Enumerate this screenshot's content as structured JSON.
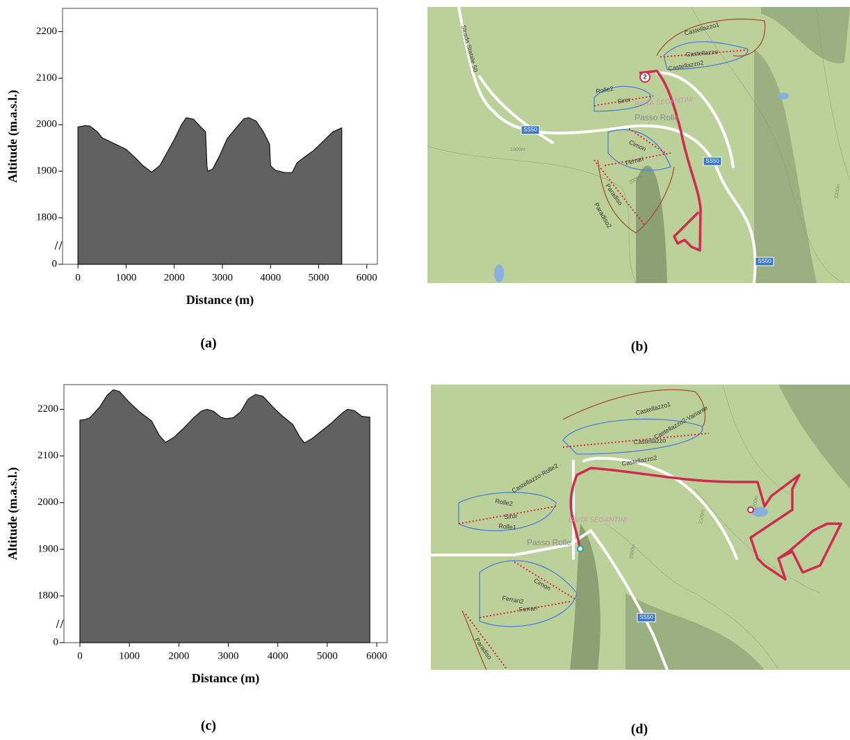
{
  "chart_data": [
    {
      "type": "area",
      "xlabel": "Distance (m)",
      "ylabel": "Altitude (m.a.s.l.)",
      "x": [
        0,
        150,
        250,
        400,
        500,
        700,
        1000,
        1200,
        1350,
        1530,
        1700,
        1850,
        2000,
        2150,
        2250,
        2400,
        2550,
        2650,
        2680,
        2700,
        2800,
        2950,
        3100,
        3300,
        3450,
        3550,
        3700,
        3850,
        3980,
        4000,
        4100,
        4300,
        4450,
        4550,
        4700,
        4900,
        5100,
        5300,
        5480
      ],
      "values": [
        1995,
        1998,
        1997,
        1985,
        1972,
        1962,
        1947,
        1928,
        1912,
        1898,
        1912,
        1940,
        1968,
        2000,
        2015,
        2012,
        1995,
        1985,
        1910,
        1900,
        1905,
        1935,
        1970,
        1995,
        2013,
        2015,
        2008,
        1985,
        1958,
        1912,
        1902,
        1897,
        1897,
        1918,
        1930,
        1945,
        1965,
        1985,
        1993
      ],
      "color": "#616161",
      "xlim": [
        -320,
        6220
      ],
      "ylim": [
        1700,
        2250
      ],
      "axis_break": true,
      "xticks": [
        0,
        1000,
        2000,
        3000,
        4000,
        5000,
        6000
      ],
      "yticks": [
        0,
        1800,
        1900,
        2000,
        2100,
        2200
      ]
    },
    {
      "type": "area",
      "xlabel": "Distance (m)",
      "ylabel": "Altitude (m.a.s.l.)",
      "x": [
        0,
        100,
        200,
        400,
        550,
        675,
        800,
        1000,
        1200,
        1450,
        1600,
        1730,
        1900,
        2100,
        2300,
        2450,
        2570,
        2700,
        2850,
        2950,
        3100,
        3250,
        3400,
        3550,
        3700,
        3900,
        4100,
        4300,
        4450,
        4540,
        4700,
        4900,
        5100,
        5300,
        5410,
        5550,
        5700,
        5860
      ],
      "values": [
        2177,
        2178,
        2182,
        2205,
        2230,
        2242,
        2238,
        2215,
        2195,
        2175,
        2145,
        2129,
        2140,
        2160,
        2182,
        2196,
        2200,
        2196,
        2183,
        2180,
        2182,
        2195,
        2222,
        2232,
        2228,
        2205,
        2185,
        2168,
        2140,
        2128,
        2138,
        2155,
        2172,
        2192,
        2200,
        2197,
        2185,
        2183
      ],
      "color": "#616161",
      "xlim": [
        -323,
        6210
      ],
      "ylim": [
        1700,
        2253
      ],
      "axis_break": true,
      "xticks": [
        0,
        1000,
        2000,
        3000,
        4000,
        5000,
        6000
      ],
      "yticks": [
        0,
        1800,
        1900,
        2000,
        2100,
        2200
      ]
    }
  ],
  "panels": [
    "(a)",
    "(b)",
    "(c)",
    "(d)"
  ],
  "maps": [
    {
      "labels": [
        "Strada Statale 50",
        "Castellazzo1",
        "Castellazzo",
        "Castellazzo2",
        "2",
        "Rolle2",
        "Siror",
        "BAITA SEGANTINI",
        "Passo Rolle",
        "SS50",
        "Cimon",
        "Ferrari",
        "SS50",
        "Paradiso",
        "Paradiso2",
        "SS50",
        "1800m",
        "2000m",
        "2200m"
      ]
    },
    {
      "labels": [
        "Castellazzo1",
        "Castellazzo2-Variante",
        "Castellazzo",
        "Castellazzo2",
        "Castellazzo-Rolle2",
        "Rolle2",
        "Siror",
        "Rolle1",
        "BAITA SEGANTINI",
        "Passo Rolle",
        "Cimon",
        "Ferrari2",
        "Ferrari",
        "SS50",
        "Paradiso",
        "2000m",
        "2100m",
        "2200m"
      ]
    }
  ]
}
